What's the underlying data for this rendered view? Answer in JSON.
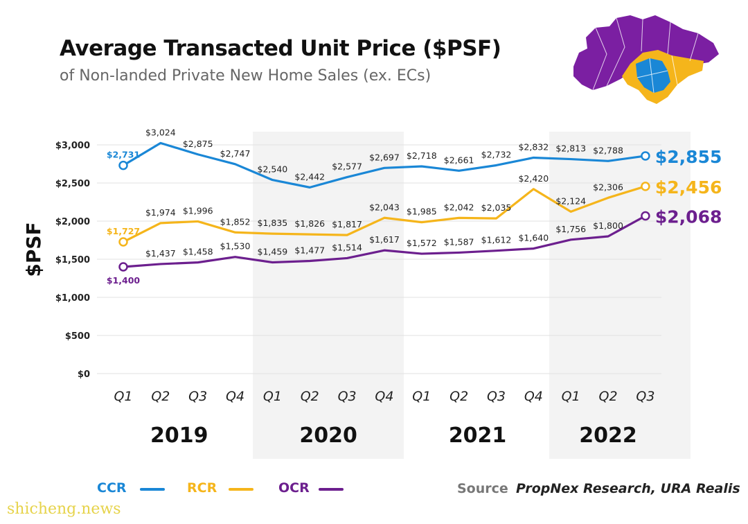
{
  "header": {
    "title": "Average Transacted Unit Price ($PSF)",
    "subtitle": "of Non-landed Private New Home Sales (ex. ECs)"
  },
  "chart_data": {
    "type": "line",
    "ylabel": "$PSF",
    "ylim": [
      0,
      3000
    ],
    "yticks": [
      "$0",
      "$500",
      "$1,000",
      "$1,500",
      "$2,000",
      "$2,500",
      "$3,000"
    ],
    "categories": [
      "Q1",
      "Q2",
      "Q3",
      "Q4",
      "Q1",
      "Q2",
      "Q3",
      "Q4",
      "Q1",
      "Q2",
      "Q3",
      "Q4",
      "Q1",
      "Q2",
      "Q3"
    ],
    "years": [
      "2019",
      "2020",
      "2021",
      "2022"
    ],
    "grid": true,
    "series": [
      {
        "name": "CCR",
        "color": "#1a87d6",
        "values": [
          2731,
          3024,
          2875,
          2747,
          2540,
          2442,
          2577,
          2697,
          2718,
          2661,
          2732,
          2832,
          2813,
          2788,
          2855
        ],
        "labels": [
          "$2,731",
          "$3,024",
          "$2,875",
          "$2,747",
          "$2,540",
          "$2,442",
          "$2,577",
          "$2,697",
          "$2,718",
          "$2,661",
          "$2,732",
          "$2,832",
          "$2,813",
          "$2,788",
          "$2,855"
        ]
      },
      {
        "name": "RCR",
        "color": "#f5b51b",
        "values": [
          1727,
          1974,
          1996,
          1852,
          1835,
          1826,
          1817,
          2043,
          1985,
          2042,
          2035,
          2420,
          2124,
          2306,
          2456
        ],
        "labels": [
          "$1,727",
          "$1,974",
          "$1,996",
          "$1,852",
          "$1,835",
          "$1,826",
          "$1,817",
          "$2,043",
          "$1,985",
          "$2,042",
          "$2,035",
          "$2,420",
          "$2,124",
          "$2,306",
          "$2,456"
        ]
      },
      {
        "name": "OCR",
        "color": "#6c1f8e",
        "values": [
          1400,
          1437,
          1458,
          1530,
          1459,
          1477,
          1514,
          1617,
          1572,
          1587,
          1612,
          1640,
          1756,
          1800,
          2068
        ],
        "labels": [
          "$1,400",
          "$1,437",
          "$1,458",
          "$1,530",
          "$1,459",
          "$1,477",
          "$1,514",
          "$1,617",
          "$1,572",
          "$1,587",
          "$1,612",
          "$1,640",
          "$1,756",
          "$1,800",
          "$2,068"
        ]
      }
    ]
  },
  "source": {
    "label": "Source",
    "text": "PropNex Research, URA Realis"
  },
  "watermark": "shicheng.news",
  "map_colors": [
    "#7b1fa2",
    "#f5b51b",
    "#1a87d6"
  ]
}
